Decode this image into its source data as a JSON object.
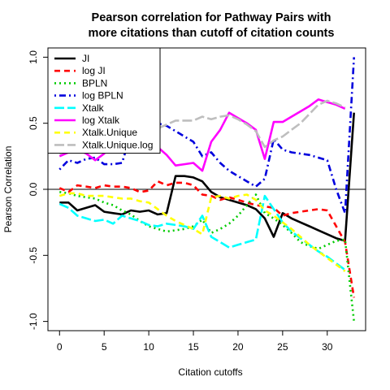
{
  "chart_data": {
    "type": "line",
    "title_lines": [
      "Pearson correlation for Pathway Pairs with",
      "more citations than cutoff of citation counts"
    ],
    "xlabel": "Citation cutoffs",
    "ylabel": "Pearson Correlation",
    "xlim": [
      -1.3,
      34.3
    ],
    "ylim": [
      -1.07,
      1.07
    ],
    "xticks": [
      0,
      5,
      10,
      15,
      20,
      25,
      30
    ],
    "yticks": [
      -1.0,
      -0.5,
      0.0,
      0.5,
      1.0
    ],
    "ytick_labels": [
      "-1.0",
      "-0.5",
      "0.0",
      "0.5",
      "1.0"
    ],
    "reference_line_y": 0,
    "legend_position": "top-left",
    "series": [
      {
        "name": "JI",
        "color": "#000000",
        "dash": "solid",
        "x": [
          0,
          1,
          2,
          3,
          4,
          5,
          6,
          7,
          8,
          9,
          10,
          11,
          12,
          13,
          14,
          15,
          16,
          17,
          18,
          19,
          20,
          21,
          22,
          23,
          24,
          25,
          26,
          27,
          28,
          29,
          30,
          31,
          32,
          33
        ],
        "y": [
          -0.1,
          -0.1,
          -0.16,
          -0.14,
          -0.12,
          -0.17,
          -0.18,
          -0.19,
          -0.16,
          -0.17,
          -0.16,
          -0.19,
          -0.18,
          0.1,
          0.1,
          0.09,
          0.06,
          -0.02,
          -0.06,
          -0.08,
          -0.1,
          -0.12,
          -0.15,
          -0.22,
          -0.36,
          -0.18,
          -0.22,
          -0.25,
          -0.28,
          -0.31,
          -0.34,
          -0.37,
          -0.39,
          0.58
        ]
      },
      {
        "name": "log JI",
        "color": "#ff0000",
        "dash": "dashed",
        "x": [
          0,
          1,
          2,
          3,
          4,
          5,
          6,
          7,
          8,
          9,
          10,
          11,
          12,
          13,
          14,
          15,
          16,
          17,
          18,
          19,
          20,
          21,
          22,
          23,
          24,
          25,
          26,
          27,
          28,
          29,
          30,
          31,
          32,
          33
        ],
        "y": [
          0.01,
          -0.02,
          0.03,
          0.02,
          0.01,
          0.03,
          0.02,
          0.02,
          0.01,
          -0.02,
          -0.01,
          0.06,
          0.03,
          0.05,
          0.05,
          0.03,
          -0.04,
          -0.05,
          -0.08,
          -0.06,
          -0.08,
          -0.1,
          -0.12,
          -0.13,
          -0.14,
          -0.2,
          -0.18,
          -0.17,
          -0.16,
          -0.15,
          -0.16,
          -0.28,
          -0.4,
          -0.82
        ]
      },
      {
        "name": "BPLN",
        "color": "#00cc00",
        "dash": "dotted",
        "x": [
          0,
          1,
          2,
          3,
          4,
          5,
          6,
          7,
          8,
          9,
          10,
          11,
          12,
          13,
          14,
          15,
          16,
          17,
          18,
          19,
          20,
          21,
          22,
          23,
          24,
          25,
          26,
          27,
          28,
          29,
          30,
          31,
          32,
          33
        ],
        "y": [
          -0.02,
          -0.03,
          -0.05,
          -0.06,
          -0.07,
          -0.1,
          -0.12,
          -0.16,
          -0.19,
          -0.24,
          -0.28,
          -0.3,
          -0.32,
          -0.31,
          -0.3,
          -0.28,
          -0.23,
          -0.33,
          -0.3,
          -0.26,
          -0.2,
          -0.12,
          -0.04,
          -0.18,
          -0.22,
          -0.27,
          -0.33,
          -0.4,
          -0.43,
          -0.45,
          -0.42,
          -0.39,
          -0.38,
          -1.0
        ]
      },
      {
        "name": "log BPLN",
        "color": "#0000dd",
        "dash": "dotdash",
        "x": [
          0,
          1,
          2,
          3,
          4,
          5,
          6,
          7,
          8,
          9,
          10,
          11,
          12,
          13,
          14,
          15,
          16,
          17,
          18,
          19,
          20,
          21,
          22,
          23,
          24,
          25,
          26,
          27,
          28,
          29,
          30,
          31,
          32,
          33
        ],
        "y": [
          0.15,
          0.22,
          0.2,
          0.23,
          0.24,
          0.19,
          0.19,
          0.2,
          0.42,
          0.45,
          0.48,
          0.5,
          0.48,
          0.44,
          0.4,
          0.36,
          0.25,
          0.28,
          0.2,
          0.14,
          0.1,
          0.06,
          0.02,
          0.08,
          0.38,
          0.3,
          0.28,
          0.27,
          0.26,
          0.24,
          0.22,
          0.0,
          -0.18,
          1.0
        ]
      },
      {
        "name": "Xtalk",
        "color": "#00ffff",
        "dash": "longdash",
        "x": [
          0,
          1,
          2,
          3,
          4,
          5,
          6,
          7,
          8,
          9,
          10,
          11,
          12,
          13,
          14,
          15,
          16,
          17,
          18,
          19,
          20,
          21,
          22,
          23,
          24,
          25,
          26,
          27,
          28,
          29,
          30,
          31,
          32
        ],
        "y": [
          -0.11,
          -0.14,
          -0.2,
          -0.22,
          -0.24,
          -0.23,
          -0.26,
          -0.2,
          -0.22,
          -0.24,
          -0.27,
          -0.28,
          -0.26,
          -0.27,
          -0.28,
          -0.3,
          -0.2,
          -0.36,
          -0.4,
          -0.44,
          -0.42,
          -0.4,
          -0.38,
          -0.05,
          -0.15,
          -0.25,
          -0.32,
          -0.37,
          -0.42,
          -0.47,
          -0.51,
          -0.56,
          -0.61
        ]
      },
      {
        "name": "log Xtalk",
        "color": "#ff00ff",
        "dash": "solid",
        "x": [
          0,
          1,
          2,
          3,
          4,
          5,
          6,
          7,
          8,
          9,
          10,
          11,
          12,
          13,
          14,
          15,
          16,
          17,
          18,
          19,
          20,
          21,
          22,
          23,
          24,
          25,
          26,
          27,
          28,
          29,
          30,
          31,
          32
        ],
        "y": [
          0.25,
          0.28,
          0.3,
          0.27,
          0.22,
          0.27,
          0.36,
          0.45,
          0.5,
          0.43,
          0.38,
          0.32,
          0.26,
          0.18,
          0.19,
          0.2,
          0.14,
          0.36,
          0.45,
          0.58,
          0.54,
          0.5,
          0.45,
          0.23,
          0.51,
          0.51,
          0.55,
          0.59,
          0.63,
          0.68,
          0.66,
          0.64,
          0.61
        ]
      },
      {
        "name": "Xtalk.Unique",
        "color": "#ffff00",
        "dash": "dashed",
        "x": [
          0,
          1,
          2,
          3,
          4,
          5,
          6,
          7,
          8,
          9,
          10,
          11,
          12,
          13,
          14,
          15,
          16,
          17,
          18,
          19,
          20,
          21,
          22,
          23,
          24,
          25,
          26,
          27,
          28,
          29,
          30,
          31,
          32
        ],
        "y": [
          -0.05,
          -0.03,
          -0.03,
          -0.05,
          -0.05,
          -0.05,
          -0.06,
          -0.07,
          -0.07,
          -0.09,
          -0.1,
          -0.15,
          -0.2,
          -0.24,
          -0.27,
          -0.3,
          -0.34,
          -0.06,
          -0.05,
          -0.07,
          -0.05,
          -0.04,
          -0.08,
          -0.16,
          -0.2,
          -0.25,
          -0.3,
          -0.36,
          -0.42,
          -0.47,
          -0.52,
          -0.57,
          -0.62
        ]
      },
      {
        "name": "Xtalk.Unique.log",
        "color": "#bebebe",
        "dash": "longdash",
        "x": [
          0,
          1,
          2,
          3,
          4,
          5,
          6,
          7,
          8,
          9,
          10,
          11,
          12,
          13,
          14,
          15,
          16,
          17,
          18,
          19,
          20,
          21,
          22,
          23,
          24,
          25,
          26,
          27,
          28,
          29,
          30,
          31,
          32
        ],
        "y": [
          0.27,
          0.29,
          0.3,
          0.28,
          0.28,
          0.3,
          0.32,
          0.34,
          0.36,
          0.4,
          0.43,
          0.46,
          0.49,
          0.52,
          0.52,
          0.52,
          0.55,
          0.53,
          0.55,
          0.56,
          0.53,
          0.49,
          0.44,
          0.32,
          0.37,
          0.4,
          0.45,
          0.5,
          0.57,
          0.64,
          0.67,
          0.65,
          0.62
        ]
      }
    ]
  }
}
